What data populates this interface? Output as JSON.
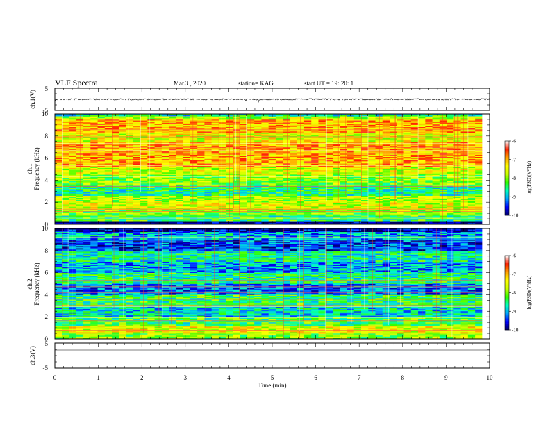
{
  "header": {
    "title": "VLF Spectra",
    "date": "Mar.3 , 2020",
    "station": "station= KAG",
    "start": "start UT = 19: 20: 1"
  },
  "chart_data": [
    {
      "type": "line",
      "panel": "ch1-waveform",
      "ylabel": "ch.1(V)",
      "ylim": [
        -5,
        5
      ],
      "yticks": [
        "5",
        "-5"
      ]
    },
    {
      "type": "heatmap",
      "panel": "ch1-spectrogram",
      "ylabel": "ch.1",
      "ylabel2": "Frequency (kHz)",
      "ylim": [
        0,
        10
      ],
      "yticks": [
        "0",
        "2",
        "4",
        "6",
        "8",
        "10"
      ],
      "xlim": [
        0,
        9.83
      ],
      "band_levels": [
        {
          "from": 0,
          "to": 0.3,
          "level": -10.0
        },
        {
          "from": 0.3,
          "to": 0.8,
          "level": -8.4
        },
        {
          "from": 0.8,
          "to": 1.3,
          "level": -8.0
        },
        {
          "from": 1.3,
          "to": 2.0,
          "level": -7.6
        },
        {
          "from": 2.0,
          "to": 2.6,
          "level": -7.8
        },
        {
          "from": 2.6,
          "to": 3.5,
          "level": -8.5
        },
        {
          "from": 3.5,
          "to": 4.5,
          "level": -8.0
        },
        {
          "from": 4.5,
          "to": 5.2,
          "level": -7.6
        },
        {
          "from": 5.2,
          "to": 7.5,
          "level": -7.0
        },
        {
          "from": 7.5,
          "to": 8.3,
          "level": -7.5
        },
        {
          "from": 8.3,
          "to": 9.5,
          "level": -7.0
        },
        {
          "from": 9.5,
          "to": 9.8,
          "level": -7.8
        },
        {
          "from": 9.8,
          "to": 10,
          "level": -8.6
        }
      ],
      "colorbar": {
        "range": [
          -10,
          -6
        ],
        "ticks": [
          "-6",
          "-7",
          "-8",
          "-9",
          "-10"
        ],
        "label": "log(PSD)(V²/Hz)",
        "colors": [
          "#000060",
          "#0000ff",
          "#00a0ff",
          "#00ffc0",
          "#30ff00",
          "#c8ff00",
          "#ffff00",
          "#ffa000",
          "#ff2000",
          "#ffffff"
        ]
      }
    },
    {
      "type": "heatmap",
      "panel": "ch2-spectrogram",
      "ylabel": "ch.2",
      "ylabel2": "Frequency (kHz)",
      "ylim": [
        0,
        10
      ],
      "yticks": [
        "0",
        "2",
        "4",
        "6",
        "8",
        "10"
      ],
      "xlim": [
        0,
        9.83
      ],
      "band_levels": [
        {
          "from": 0,
          "to": 0.5,
          "level": -8.0
        },
        {
          "from": 0.5,
          "to": 1.2,
          "level": -7.5
        },
        {
          "from": 1.2,
          "to": 2.0,
          "level": -8.3
        },
        {
          "from": 2.0,
          "to": 3.0,
          "level": -8.8
        },
        {
          "from": 3.0,
          "to": 4.0,
          "level": -8.4
        },
        {
          "from": 4.0,
          "to": 5.0,
          "level": -9.2
        },
        {
          "from": 5.0,
          "to": 6.0,
          "level": -8.5
        },
        {
          "from": 6.0,
          "to": 7.0,
          "level": -9.0
        },
        {
          "from": 7.0,
          "to": 8.0,
          "level": -8.6
        },
        {
          "from": 8.0,
          "to": 9.0,
          "level": -9.4
        },
        {
          "from": 9.0,
          "to": 9.7,
          "level": -9.0
        },
        {
          "from": 9.7,
          "to": 10,
          "level": -9.8
        }
      ],
      "colorbar": {
        "range": [
          -10,
          -6
        ],
        "ticks": [
          "-6",
          "-7",
          "-8",
          "-9",
          "-10"
        ],
        "label": "log(PSD)(V²/Hz)",
        "colors": [
          "#000060",
          "#0000ff",
          "#00a0ff",
          "#00ffc0",
          "#30ff00",
          "#c8ff00",
          "#ffff00",
          "#ffa000",
          "#ff2000",
          "#ffffff"
        ]
      }
    },
    {
      "type": "line",
      "panel": "ch3-waveform",
      "ylabel": "ch.3(V)",
      "ylim": [
        -5,
        5
      ],
      "yticks": [
        "5",
        "-5"
      ],
      "xlabel": "Time (min)",
      "xlim": [
        0,
        10
      ],
      "xticks": [
        "0",
        "1",
        "2",
        "3",
        "4",
        "5",
        "6",
        "7",
        "8",
        "9",
        "10"
      ]
    }
  ]
}
